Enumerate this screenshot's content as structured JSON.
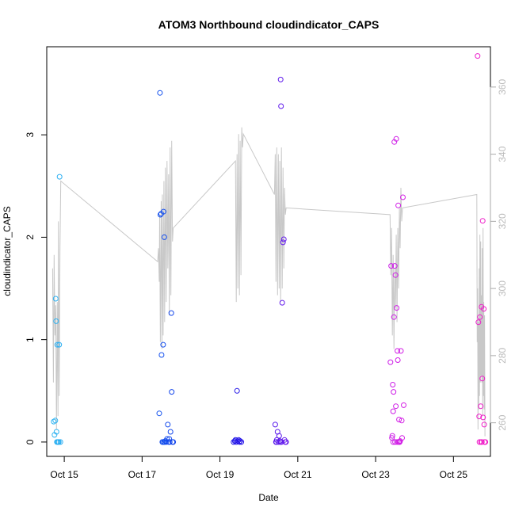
{
  "chart_data": {
    "type": "scatter",
    "title": "ATOM3 Northbound cloudindicator_CAPS",
    "xlabel": "Date",
    "ylabel": "cloudindicator_CAPS",
    "xlim": [
      14.55,
      25.95
    ],
    "ylim": [
      -0.14,
      3.86
    ],
    "x_ticks": [
      15,
      17,
      19,
      21,
      23,
      25
    ],
    "x_tick_labels": [
      "Oct 15",
      "Oct 17",
      "Oct 19",
      "Oct 21",
      "Oct 23",
      "Oct 25"
    ],
    "y_ticks": [
      0,
      1,
      2,
      3
    ],
    "y_tick_labels": [
      "0",
      "1",
      "2",
      "3"
    ],
    "y2_lim": [
      250,
      372
    ],
    "y2_ticks": [
      260,
      280,
      300,
      320,
      340,
      360
    ],
    "y2_tick_labels": [
      "260",
      "280",
      "300",
      "320",
      "340",
      "360"
    ],
    "grid": false,
    "series": [
      {
        "name": "cloudindicator_CAPS",
        "type": "scatter",
        "marker": "open-circle",
        "color_gradient": [
          "#2EB4F2",
          "#1565F0",
          "#1414E6",
          "#8C1EF0",
          "#D21EE6",
          "#F01EC8"
        ],
        "points": [
          [
            14.73,
            0.2
          ],
          [
            14.75,
            0.07
          ],
          [
            14.77,
            0.21
          ],
          [
            14.78,
            1.4
          ],
          [
            14.79,
            1.18
          ],
          [
            14.8,
            0.1
          ],
          [
            14.81,
            0.0
          ],
          [
            14.82,
            0.95
          ],
          [
            14.83,
            0.0
          ],
          [
            14.85,
            0.0
          ],
          [
            14.87,
            0.95
          ],
          [
            14.88,
            2.59
          ],
          [
            14.9,
            0.0
          ],
          [
            14.86,
            0.0
          ],
          [
            17.44,
            0.28
          ],
          [
            17.46,
            3.41
          ],
          [
            17.47,
            2.22
          ],
          [
            17.49,
            2.23
          ],
          [
            17.5,
            0.85
          ],
          [
            17.52,
            0.0
          ],
          [
            17.54,
            0.95
          ],
          [
            17.55,
            2.25
          ],
          [
            17.57,
            2.0
          ],
          [
            17.58,
            0.0
          ],
          [
            17.6,
            0.01
          ],
          [
            17.62,
            0.0
          ],
          [
            17.64,
            0.03
          ],
          [
            17.66,
            0.17
          ],
          [
            17.68,
            0.0
          ],
          [
            17.7,
            0.03
          ],
          [
            17.71,
            0.0
          ],
          [
            17.73,
            0.1
          ],
          [
            17.75,
            1.26
          ],
          [
            17.76,
            0.49
          ],
          [
            17.78,
            0.0
          ],
          [
            17.8,
            0.0
          ],
          [
            17.56,
            0.0
          ],
          [
            17.53,
            0.0
          ],
          [
            19.35,
            0.0
          ],
          [
            19.38,
            0.01
          ],
          [
            19.4,
            0.02
          ],
          [
            19.42,
            0.0
          ],
          [
            19.44,
            0.5
          ],
          [
            19.46,
            0.01
          ],
          [
            19.48,
            0.02
          ],
          [
            19.5,
            0.0
          ],
          [
            19.52,
            0.01
          ],
          [
            19.55,
            0.0
          ],
          [
            20.42,
            0.17
          ],
          [
            20.44,
            0.0
          ],
          [
            20.46,
            0.02
          ],
          [
            20.48,
            0.1
          ],
          [
            20.5,
            0.0
          ],
          [
            20.52,
            0.06
          ],
          [
            20.54,
            0.01
          ],
          [
            20.56,
            3.54
          ],
          [
            20.57,
            3.28
          ],
          [
            20.58,
            0.0
          ],
          [
            20.6,
            1.36
          ],
          [
            20.62,
            1.95
          ],
          [
            20.64,
            1.98
          ],
          [
            20.66,
            0.02
          ],
          [
            20.68,
            0.0
          ],
          [
            20.7,
            0.0
          ],
          [
            20.45,
            0.0
          ],
          [
            20.55,
            0.0
          ],
          [
            23.38,
            0.78
          ],
          [
            23.4,
            1.72
          ],
          [
            23.42,
            0.04
          ],
          [
            23.43,
            0.06
          ],
          [
            23.44,
            0.56
          ],
          [
            23.45,
            0.3
          ],
          [
            23.46,
            0.49
          ],
          [
            23.47,
            1.22
          ],
          [
            23.48,
            2.93
          ],
          [
            23.49,
            1.72
          ],
          [
            23.5,
            0.0
          ],
          [
            23.51,
            1.63
          ],
          [
            23.52,
            0.35
          ],
          [
            23.53,
            2.96
          ],
          [
            23.54,
            1.31
          ],
          [
            23.55,
            0.0
          ],
          [
            23.56,
            0.89
          ],
          [
            23.57,
            0.8
          ],
          [
            23.58,
            2.31
          ],
          [
            23.59,
            0.0
          ],
          [
            23.6,
            0.22
          ],
          [
            23.61,
            0.0
          ],
          [
            23.62,
            0.0
          ],
          [
            23.63,
            0.01
          ],
          [
            23.65,
            0.89
          ],
          [
            23.67,
            0.21
          ],
          [
            23.68,
            0.04
          ],
          [
            23.7,
            2.39
          ],
          [
            23.72,
            0.36
          ],
          [
            23.45,
            0.0
          ],
          [
            25.62,
            3.77
          ],
          [
            25.64,
            1.17
          ],
          [
            25.66,
            0.25
          ],
          [
            25.67,
            0.0
          ],
          [
            25.68,
            1.22
          ],
          [
            25.7,
            0.35
          ],
          [
            25.71,
            0.0
          ],
          [
            25.72,
            1.32
          ],
          [
            25.73,
            0.0
          ],
          [
            25.74,
            0.62
          ],
          [
            25.75,
            2.16
          ],
          [
            25.76,
            0.24
          ],
          [
            25.78,
            1.3
          ],
          [
            25.79,
            0.17
          ],
          [
            25.8,
            0.0
          ],
          [
            25.82,
            0.0
          ]
        ]
      },
      {
        "name": "right-axis line",
        "type": "line",
        "color": "#c8c8c8",
        "axis": "right",
        "points": [
          [
            14.7,
            306
          ],
          [
            14.72,
            272
          ],
          [
            14.74,
            310
          ],
          [
            14.76,
            286
          ],
          [
            14.78,
            295
          ],
          [
            14.8,
            258
          ],
          [
            14.82,
            296
          ],
          [
            14.84,
            262
          ],
          [
            14.85,
            320
          ],
          [
            14.87,
            268
          ],
          [
            14.89,
            312
          ],
          [
            14.91,
            332
          ],
          [
            17.4,
            308
          ],
          [
            17.42,
            312
          ],
          [
            17.44,
            302
          ],
          [
            17.45,
            322
          ],
          [
            17.47,
            284
          ],
          [
            17.49,
            326
          ],
          [
            17.51,
            282
          ],
          [
            17.52,
            328
          ],
          [
            17.54,
            286
          ],
          [
            17.56,
            332
          ],
          [
            17.58,
            290
          ],
          [
            17.6,
            336
          ],
          [
            17.62,
            296
          ],
          [
            17.64,
            338
          ],
          [
            17.66,
            306
          ],
          [
            17.68,
            334
          ],
          [
            17.7,
            292
          ],
          [
            17.72,
            342
          ],
          [
            17.74,
            298
          ],
          [
            17.76,
            344
          ],
          [
            17.78,
            314
          ],
          [
            17.8,
            318
          ],
          [
            19.4,
            338
          ],
          [
            19.42,
            296
          ],
          [
            19.44,
            340
          ],
          [
            19.46,
            300
          ],
          [
            19.48,
            346
          ],
          [
            19.5,
            298
          ],
          [
            19.52,
            344
          ],
          [
            19.54,
            304
          ],
          [
            19.56,
            348
          ],
          [
            19.58,
            342
          ],
          [
            19.6,
            346
          ],
          [
            20.4,
            328
          ],
          [
            20.42,
            340
          ],
          [
            20.44,
            302
          ],
          [
            20.46,
            342
          ],
          [
            20.48,
            298
          ],
          [
            20.5,
            340
          ],
          [
            20.52,
            300
          ],
          [
            20.54,
            338
          ],
          [
            20.56,
            296
          ],
          [
            20.58,
            342
          ],
          [
            20.6,
            300
          ],
          [
            20.62,
            336
          ],
          [
            20.64,
            306
          ],
          [
            20.66,
            330
          ],
          [
            20.68,
            322
          ],
          [
            20.7,
            324
          ],
          [
            23.37,
            322
          ],
          [
            23.39,
            304
          ],
          [
            23.41,
            318
          ],
          [
            23.43,
            286
          ],
          [
            23.45,
            310
          ],
          [
            23.47,
            282
          ],
          [
            23.49,
            306
          ],
          [
            23.51,
            294
          ],
          [
            23.53,
            316
          ],
          [
            23.55,
            290
          ],
          [
            23.57,
            318
          ],
          [
            23.59,
            300
          ],
          [
            23.61,
            324
          ],
          [
            23.63,
            312
          ],
          [
            23.65,
            330
          ],
          [
            23.67,
            320
          ],
          [
            23.69,
            324
          ],
          [
            25.6,
            328
          ],
          [
            25.61,
            284
          ],
          [
            25.62,
            300
          ],
          [
            25.63,
            258
          ],
          [
            25.64,
            290
          ],
          [
            25.65,
            264
          ],
          [
            25.66,
            306
          ],
          [
            25.67,
            268
          ],
          [
            25.68,
            316
          ],
          [
            25.69,
            272
          ],
          [
            25.7,
            314
          ],
          [
            25.71,
            274
          ],
          [
            25.72,
            298
          ],
          [
            25.73,
            272
          ],
          [
            25.74,
            312
          ],
          [
            25.75,
            262
          ],
          [
            25.76,
            318
          ],
          [
            25.77,
            268
          ],
          [
            25.78,
            296
          ],
          [
            25.79,
            264
          ],
          [
            25.8,
            292
          ],
          [
            25.81,
            256
          ]
        ]
      }
    ]
  }
}
